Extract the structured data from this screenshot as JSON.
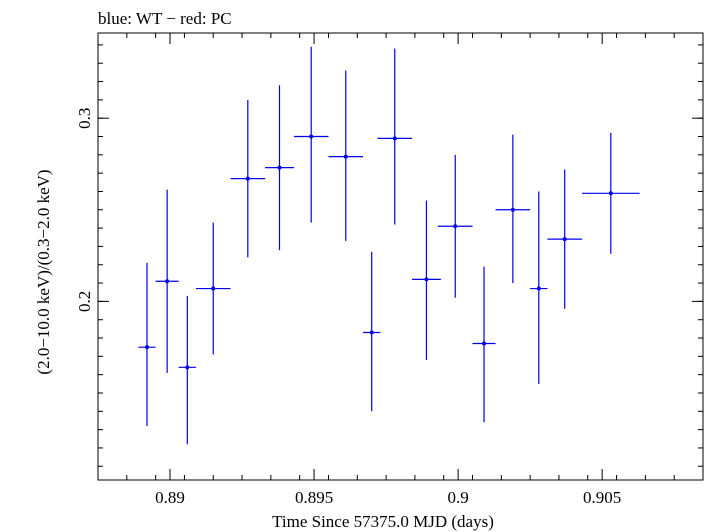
{
  "header": {
    "title": "blue: WT − red: PC"
  },
  "chart_data": {
    "type": "scatter",
    "title": "blue: WT − red: PC",
    "xlabel": "Time Since 57375.0 MJD (days)",
    "ylabel": "(2.0−10.0 keV)/(0.3−2.0 keV)",
    "xlim": [
      0.8875,
      0.9085
    ],
    "ylim": [
      0.1025,
      0.3465
    ],
    "x_ticks": [
      {
        "value": 0.89,
        "label": "0.89"
      },
      {
        "value": 0.895,
        "label": "0.895"
      },
      {
        "value": 0.9,
        "label": "0.9"
      },
      {
        "value": 0.905,
        "label": "0.905"
      }
    ],
    "y_ticks": [
      {
        "value": 0.2,
        "label": "0.2"
      },
      {
        "value": 0.3,
        "label": "0.3"
      }
    ],
    "grid": false,
    "series": [
      {
        "color": "#0000ee",
        "points": [
          {
            "x": 0.8892,
            "xerr": 0.0003,
            "y": 0.175,
            "ylo": 0.132,
            "yhi": 0.221
          },
          {
            "x": 0.8899,
            "xerr": 0.0004,
            "y": 0.211,
            "ylo": 0.161,
            "yhi": 0.261
          },
          {
            "x": 0.8906,
            "xerr": 0.0003,
            "y": 0.164,
            "ylo": 0.122,
            "yhi": 0.203
          },
          {
            "x": 0.8915,
            "xerr": 0.0006,
            "y": 0.207,
            "ylo": 0.171,
            "yhi": 0.243
          },
          {
            "x": 0.8927,
            "xerr": 0.0006,
            "y": 0.267,
            "ylo": 0.224,
            "yhi": 0.31
          },
          {
            "x": 0.8938,
            "xerr": 0.0005,
            "y": 0.273,
            "ylo": 0.228,
            "yhi": 0.318
          },
          {
            "x": 0.8949,
            "xerr": 0.0006,
            "y": 0.29,
            "ylo": 0.243,
            "yhi": 0.339
          },
          {
            "x": 0.8961,
            "xerr": 0.0006,
            "y": 0.279,
            "ylo": 0.233,
            "yhi": 0.326
          },
          {
            "x": 0.897,
            "xerr": 0.0003,
            "y": 0.183,
            "ylo": 0.14,
            "yhi": 0.227
          },
          {
            "x": 0.8978,
            "xerr": 0.0006,
            "y": 0.289,
            "ylo": 0.242,
            "yhi": 0.338
          },
          {
            "x": 0.8989,
            "xerr": 0.0005,
            "y": 0.212,
            "ylo": 0.168,
            "yhi": 0.255
          },
          {
            "x": 0.8999,
            "xerr": 0.0006,
            "y": 0.241,
            "ylo": 0.202,
            "yhi": 0.28
          },
          {
            "x": 0.9009,
            "xerr": 0.0004,
            "y": 0.177,
            "ylo": 0.134,
            "yhi": 0.219
          },
          {
            "x": 0.9019,
            "xerr": 0.0006,
            "y": 0.25,
            "ylo": 0.21,
            "yhi": 0.291
          },
          {
            "x": 0.9028,
            "xerr": 0.0003,
            "y": 0.207,
            "ylo": 0.155,
            "yhi": 0.26
          },
          {
            "x": 0.9037,
            "xerr": 0.0006,
            "y": 0.234,
            "ylo": 0.196,
            "yhi": 0.272
          },
          {
            "x": 0.9053,
            "xerr": 0.001,
            "y": 0.259,
            "ylo": 0.226,
            "yhi": 0.292
          }
        ]
      }
    ]
  }
}
